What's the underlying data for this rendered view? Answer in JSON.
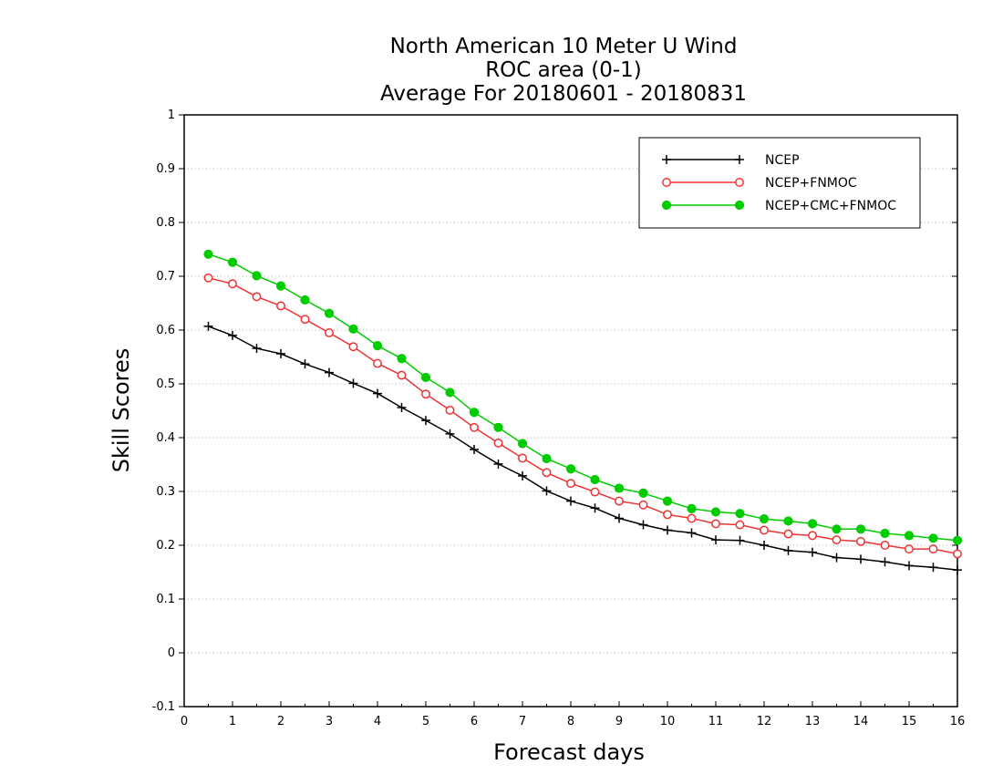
{
  "chart_data": {
    "type": "line",
    "title": [
      "North American 10 Meter U Wind",
      "ROC area (0-1)",
      "Average For 20180601 - 20180831"
    ],
    "xlabel": "Forecast days",
    "ylabel": "Skill Scores",
    "xlim": [
      0,
      16
    ],
    "ylim": [
      -0.1,
      1
    ],
    "xticks": [
      0,
      1,
      2,
      3,
      4,
      5,
      6,
      7,
      8,
      9,
      10,
      11,
      12,
      13,
      14,
      15,
      16
    ],
    "yticks": [
      -0.1,
      0,
      0.1,
      0.2,
      0.3,
      0.4,
      0.5,
      0.6,
      0.7,
      0.8,
      0.9,
      1
    ],
    "ytick_labels": [
      "-0.1",
      "0",
      "0.1",
      "0.2",
      "0.3",
      "0.4",
      "0.5",
      "0.6",
      "0.7",
      "0.8",
      "0.9",
      "1"
    ],
    "grid": true,
    "legend_position": "top-right",
    "x": [
      0.5,
      1,
      1.5,
      2,
      2.5,
      3,
      3.5,
      4,
      4.5,
      5,
      5.5,
      6,
      6.5,
      7,
      7.5,
      8,
      8.5,
      9,
      9.5,
      10,
      10.5,
      11,
      11.5,
      12,
      12.5,
      13,
      13.5,
      14,
      14.5,
      15,
      15.5,
      16
    ],
    "series": [
      {
        "name": "NCEP",
        "color": "#000000",
        "marker": "plus",
        "values": [
          0.607,
          0.59,
          0.566,
          0.556,
          0.537,
          0.521,
          0.501,
          0.482,
          0.456,
          0.432,
          0.407,
          0.378,
          0.351,
          0.329,
          0.301,
          0.282,
          0.269,
          0.25,
          0.238,
          0.228,
          0.223,
          0.21,
          0.209,
          0.2,
          0.19,
          0.187,
          0.177,
          0.174,
          0.169,
          0.162,
          0.159,
          0.154
        ]
      },
      {
        "name": "NCEP+FNMOC",
        "color": "#ee3333",
        "marker": "open-circle",
        "values": [
          0.697,
          0.686,
          0.662,
          0.645,
          0.62,
          0.595,
          0.569,
          0.538,
          0.516,
          0.481,
          0.451,
          0.419,
          0.39,
          0.362,
          0.335,
          0.315,
          0.299,
          0.282,
          0.275,
          0.257,
          0.25,
          0.24,
          0.238,
          0.228,
          0.221,
          0.218,
          0.21,
          0.207,
          0.2,
          0.193,
          0.193,
          0.184
        ]
      },
      {
        "name": "NCEP+CMC+FNMOC",
        "color": "#00cc00",
        "marker": "filled-circle",
        "values": [
          0.741,
          0.726,
          0.701,
          0.682,
          0.656,
          0.631,
          0.602,
          0.571,
          0.547,
          0.512,
          0.484,
          0.447,
          0.419,
          0.389,
          0.361,
          0.342,
          0.322,
          0.306,
          0.297,
          0.282,
          0.268,
          0.262,
          0.259,
          0.249,
          0.245,
          0.24,
          0.23,
          0.23,
          0.222,
          0.218,
          0.213,
          0.209
        ]
      }
    ]
  }
}
